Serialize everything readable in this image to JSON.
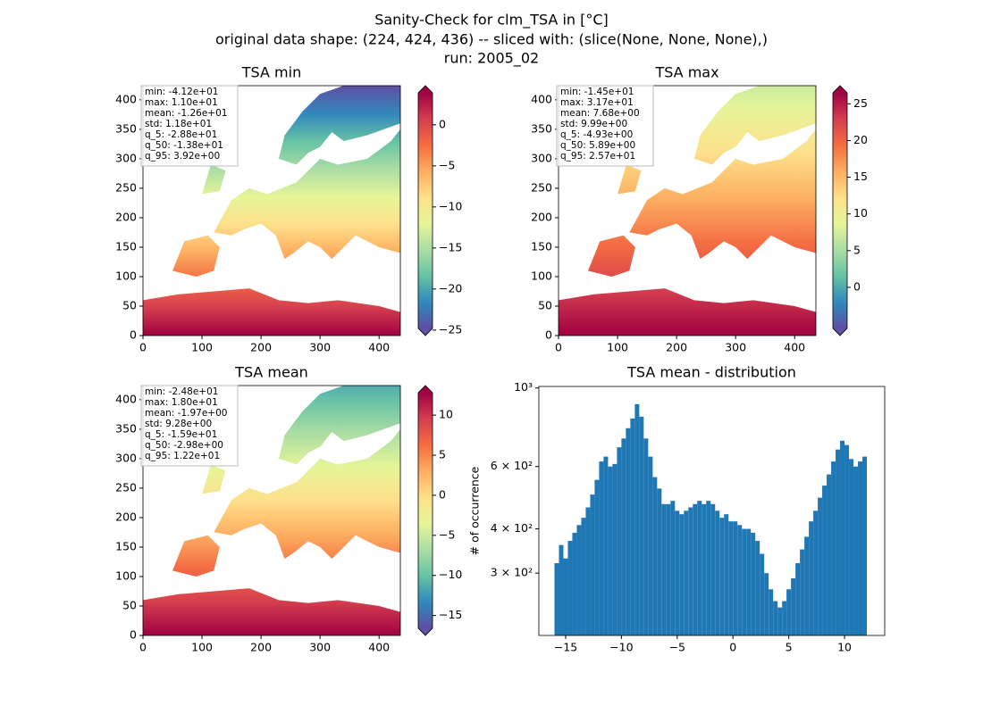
{
  "suptitle": [
    "Sanity-Check for clm_TSA in [°C]",
    "original data shape: (224, 424, 436) -- sliced with: (slice(None, None, None),)",
    "run: 2005_02"
  ],
  "chart_data": [
    {
      "type": "heatmap",
      "title": "TSA min",
      "xlim": [
        0,
        436
      ],
      "ylim": [
        0,
        424
      ],
      "xticks": [
        0,
        100,
        200,
        300,
        400
      ],
      "yticks": [
        0,
        50,
        100,
        150,
        200,
        250,
        300,
        350,
        400
      ],
      "colormap": [
        "#5e4fa2",
        "#3288bd",
        "#66c2a5",
        "#abdda4",
        "#e6f598",
        "#fee08b",
        "#fdae61",
        "#f46d43",
        "#d53e4f",
        "#9e0142"
      ],
      "colorbar": {
        "clim": [
          -24.8,
          3.9
        ],
        "extend": "both",
        "ticks": [
          {
            "value": -25,
            "label": "−25"
          },
          {
            "value": -20,
            "label": "−20"
          },
          {
            "value": -15,
            "label": "−15"
          },
          {
            "value": -10,
            "label": "−10"
          },
          {
            "value": -5,
            "label": "−5"
          },
          0
        ]
      },
      "stats": [
        "min: -4.12e+01",
        "max: 1.10e+01",
        "mean: -1.26e+01",
        "std: 1.18e+01",
        "q_5: -2.88e+01",
        "q_50: -1.38e+01",
        "q_95: 3.92e+00"
      ]
    },
    {
      "type": "heatmap",
      "title": "TSA max",
      "xlim": [
        0,
        436
      ],
      "ylim": [
        0,
        424
      ],
      "xticks": [
        0,
        100,
        200,
        300,
        400
      ],
      "yticks": [
        0,
        50,
        100,
        150,
        200,
        250,
        300,
        350,
        400
      ],
      "colormap": [
        "#5e4fa2",
        "#3288bd",
        "#66c2a5",
        "#abdda4",
        "#e6f598",
        "#fee08b",
        "#fdae61",
        "#f46d43",
        "#d53e4f",
        "#9e0142"
      ],
      "colorbar": {
        "clim": [
          -5.6,
          26.5
        ],
        "extend": "both",
        "ticks": [
          0,
          5,
          10,
          15,
          20,
          25
        ]
      },
      "stats": [
        "min: -1.45e+01",
        "max: 3.17e+01",
        "mean: 7.68e+00",
        "std: 9.99e+00",
        "q_5: -4.93e+00",
        "q_50: 5.89e+00",
        "q_95: 2.57e+01"
      ]
    },
    {
      "type": "heatmap",
      "title": "TSA mean",
      "xlim": [
        0,
        436
      ],
      "ylim": [
        0,
        424
      ],
      "xticks": [
        0,
        100,
        200,
        300,
        400
      ],
      "yticks": [
        0,
        50,
        100,
        150,
        200,
        250,
        300,
        350,
        400
      ],
      "colormap": [
        "#5e4fa2",
        "#3288bd",
        "#66c2a5",
        "#abdda4",
        "#e6f598",
        "#fee08b",
        "#fdae61",
        "#f46d43",
        "#d53e4f",
        "#9e0142"
      ],
      "colorbar": {
        "clim": [
          -16.6,
          12.8
        ],
        "extend": "both",
        "ticks": [
          {
            "value": -15,
            "label": "−15"
          },
          {
            "value": -10,
            "label": "−10"
          },
          {
            "value": -5,
            "label": "−5"
          },
          0,
          5,
          10
        ]
      },
      "stats": [
        "min: -2.48e+01",
        "max: 1.80e+01",
        "mean: -1.97e+00",
        "std: 9.28e+00",
        "q_5: -1.59e+01",
        "q_50: -2.98e+00",
        "q_95: 1.22e+01"
      ]
    },
    {
      "type": "histogram",
      "title": "TSA mean - distribution",
      "y_label": "# of occurrence",
      "color": "#1f77b4",
      "log_y": true,
      "xlim": [
        -17.4,
        13.6
      ],
      "ylim": [
        200,
        1010
      ],
      "xticks": [
        {
          "value": -15,
          "label": "−15"
        },
        {
          "value": -10,
          "label": "−10"
        },
        {
          "value": -5,
          "label": "−5"
        },
        0,
        5,
        10
      ],
      "yticks": [
        {
          "value": 300,
          "label": "3 × 10²"
        },
        {
          "value": 400,
          "label": "4 × 10²"
        },
        {
          "value": 600,
          "label": "6 × 10²"
        },
        {
          "value": 1000,
          "label": "10³"
        }
      ],
      "bins": [
        -16,
        -15.6,
        -15.2,
        -14.8,
        -14.4,
        -14,
        -13.6,
        -13.2,
        -12.8,
        -12.4,
        -12,
        -11.6,
        -11.2,
        -10.8,
        -10.4,
        -10,
        -9.6,
        -9.2,
        -8.8,
        -8.4,
        -8,
        -7.6,
        -7.2,
        -6.8,
        -6.4,
        -6,
        -5.6,
        -5.2,
        -4.8,
        -4.4,
        -4,
        -3.6,
        -3.2,
        -2.8,
        -2.4,
        -2,
        -1.6,
        -1.2,
        -0.8,
        -0.4,
        0,
        0.4,
        0.8,
        1.2,
        1.6,
        2,
        2.4,
        2.8,
        3.2,
        3.6,
        4,
        4.4,
        4.8,
        5.2,
        5.6,
        6,
        6.4,
        6.8,
        7.2,
        7.6,
        8,
        8.4,
        8.8,
        9.2,
        9.6,
        10,
        10.4,
        10.8,
        11.2,
        11.6,
        12
      ],
      "values": [
        320,
        360,
        330,
        370,
        390,
        410,
        430,
        460,
        500,
        550,
        620,
        640,
        600,
        610,
        680,
        720,
        770,
        820,
        900,
        830,
        720,
        640,
        560,
        520,
        470,
        470,
        480,
        450,
        440,
        450,
        460,
        470,
        480,
        470,
        480,
        470,
        450,
        430,
        440,
        420,
        420,
        410,
        400,
        400,
        390,
        370,
        340,
        300,
        270,
        250,
        240,
        250,
        270,
        290,
        320,
        350,
        380,
        420,
        450,
        490,
        530,
        570,
        620,
        670,
        710,
        690,
        630,
        600,
        620,
        640
      ]
    }
  ]
}
